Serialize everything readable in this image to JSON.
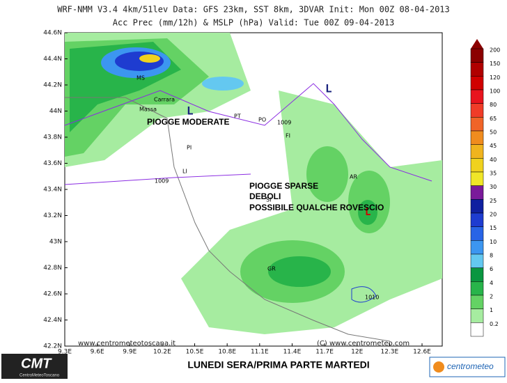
{
  "header": {
    "line1": "WRF-NMM V3.4 4km/51lev  Data: GFS 23km, SST 8km, 3DVAR  Init: Mon 00Z 08-04-2013",
    "line2": "Acc Prec (mm/12h) & MSLP (hPa)  Valid: Tue 00Z 09-04-2013"
  },
  "axes": {
    "lat_labels": [
      "44.6N",
      "44.4N",
      "44.2N",
      "44N",
      "43.8N",
      "43.6N",
      "43.4N",
      "43.2N",
      "43N",
      "42.8N",
      "42.6N",
      "42.4N",
      "42.2N"
    ],
    "lon_labels": [
      "9.3E",
      "9.6E",
      "9.9E",
      "10.2E",
      "10.5E",
      "10.8E",
      "11.1E",
      "11.4E",
      "11.7E",
      "12E",
      "12.3E",
      "12.6E"
    ]
  },
  "colorbar": {
    "levels": [
      "200",
      "150",
      "120",
      "100",
      "80",
      "65",
      "50",
      "45",
      "40",
      "35",
      "30",
      "25",
      "20",
      "15",
      "10",
      "8",
      "6",
      "4",
      "2",
      "1",
      "0.2"
    ],
    "colors": [
      "#8b0000",
      "#b00000",
      "#d00000",
      "#e8141e",
      "#f03c28",
      "#f06428",
      "#f08c1e",
      "#f0b41e",
      "#f0d21e",
      "#f0e628",
      "#7a1a9a",
      "#1020a0",
      "#1e3cd0",
      "#2864e6",
      "#3c96f0",
      "#64c8f0",
      "#0a9640",
      "#28b44a",
      "#64d264",
      "#a6eca0",
      "#ffffff"
    ]
  },
  "annotations": {
    "moderate": "PIOGGE MODERATE",
    "sparse": "PIOGGE SPARSE",
    "weak": "DEBOLI",
    "showers": "POSSIBILE QUALCHE ROVESCIO"
  },
  "cities": {
    "ms": "MS",
    "carrara": "Carrara",
    "massa": "Massa",
    "pt": "PT",
    "po": "PO",
    "fi": "FI",
    "pi": "PI",
    "li": "LI",
    "ar": "AR",
    "si": "SI",
    "gr": "GR"
  },
  "isobars": {
    "a": "1009",
    "b": "1009",
    "c": "1010"
  },
  "lows": {
    "a": "L",
    "b": "L",
    "c": "L"
  },
  "watermarks": {
    "left": "www.centrometeotoscana.it",
    "right": "(C) www.centrometeo.com"
  },
  "footer": {
    "caption": "LUNEDI SERA/PRIMA PARTE MARTEDI",
    "logo_left": "CMT",
    "logo_left_sub": "CentroMeteoToscano",
    "logo_right": "centrometeo"
  }
}
